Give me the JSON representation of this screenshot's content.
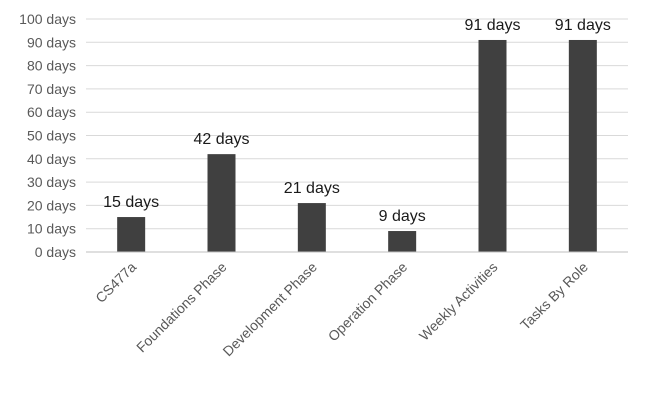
{
  "chart_data": {
    "type": "bar",
    "categories": [
      "CS477a",
      "Foundations Phase",
      "Development Phase",
      "Operation Phase",
      "Weekly Activities",
      "Tasks By Role"
    ],
    "values": [
      15,
      42,
      21,
      9,
      91,
      91
    ],
    "data_labels": [
      "15 days",
      "42 days",
      "21 days",
      "9 days",
      "91 days",
      "91 days"
    ],
    "y_ticks": [
      {
        "value": 0,
        "label": "0 days"
      },
      {
        "value": 10,
        "label": "10 days"
      },
      {
        "value": 20,
        "label": "20 days"
      },
      {
        "value": 30,
        "label": "30 days"
      },
      {
        "value": 40,
        "label": "40 days"
      },
      {
        "value": 50,
        "label": "50 days"
      },
      {
        "value": 60,
        "label": "60 days"
      },
      {
        "value": 70,
        "label": "70 days"
      },
      {
        "value": 80,
        "label": "80 days"
      },
      {
        "value": 90,
        "label": "90 days"
      },
      {
        "value": 100,
        "label": "100 days"
      }
    ],
    "ylim": [
      0,
      100
    ],
    "grid": true,
    "legend": "none",
    "bar_color": "#404040",
    "title": "",
    "xlabel": "",
    "ylabel": ""
  }
}
